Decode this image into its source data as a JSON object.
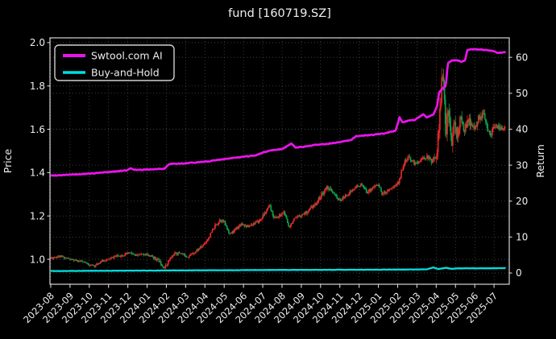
{
  "chart_data": {
    "type": "mixed",
    "subtypes": [
      "candlestick",
      "line"
    ],
    "title": "fund [160719.SZ]",
    "ylabel_left": "Price",
    "ylabel_right": "Return",
    "background": "#000000",
    "grid": true,
    "legend_position": "upper-left",
    "legend": [
      {
        "label": "Swtool.com AI",
        "color": "#ea14ea"
      },
      {
        "label": "Buy-and-Hold",
        "color": "#00dede"
      }
    ],
    "x_axis": {
      "unit": "months since 2023-08",
      "min": -0.04,
      "max": 23.79,
      "data_end": 23.6,
      "tick_months": [
        0,
        1,
        2,
        3,
        4,
        5,
        6,
        7,
        8,
        9,
        10,
        11,
        12,
        13,
        14,
        15,
        16,
        17,
        18,
        19,
        20,
        21,
        22,
        23
      ],
      "tick_labels": [
        "2023-08",
        "2023-09",
        "2023-10",
        "2023-11",
        "2023-12",
        "2024-01",
        "2024-02",
        "2024-03",
        "2024-04",
        "2024-05",
        "2024-06",
        "2024-07",
        "2024-08",
        "2024-09",
        "2024-10",
        "2024-11",
        "2024-12",
        "2025-01",
        "2025-02",
        "2025-03",
        "2025-04",
        "2025-05",
        "2025-06",
        "2025-07"
      ]
    },
    "price_axis": {
      "min": 0.885,
      "max": 2.022,
      "ticks": [
        1.0,
        1.2,
        1.4,
        1.6,
        1.8,
        2.0
      ],
      "tick_labels": [
        "1.0",
        "1.2",
        "1.4",
        "1.6",
        "1.8",
        "2.0"
      ]
    },
    "return_axis": {
      "min": -3.13,
      "max": 65.42,
      "ticks": [
        0,
        10,
        20,
        30,
        40,
        50,
        60
      ],
      "tick_labels": [
        "0",
        "10",
        "20",
        "30",
        "40",
        "50",
        "60"
      ]
    },
    "series": {
      "ai": {
        "name": "Swtool.com AI",
        "axis": "return",
        "color": "#ea14ea",
        "points": [
          [
            0,
            27.1
          ],
          [
            0.8,
            27.3
          ],
          [
            1.6,
            27.5
          ],
          [
            2.4,
            27.8
          ],
          [
            3.2,
            28.2
          ],
          [
            3.9,
            28.5
          ],
          [
            4.15,
            29.1
          ],
          [
            4.45,
            28.6
          ],
          [
            5.0,
            28.8
          ],
          [
            5.9,
            29.0
          ],
          [
            6.15,
            30.3
          ],
          [
            7.0,
            30.5
          ],
          [
            7.6,
            30.8
          ],
          [
            8.2,
            31.1
          ],
          [
            9.0,
            31.7
          ],
          [
            9.8,
            32.2
          ],
          [
            10.6,
            32.7
          ],
          [
            11.05,
            33.6
          ],
          [
            11.5,
            34.2
          ],
          [
            12.0,
            34.5
          ],
          [
            12.5,
            36.0
          ],
          [
            12.7,
            34.9
          ],
          [
            13.1,
            35.1
          ],
          [
            13.7,
            35.6
          ],
          [
            14.3,
            35.9
          ],
          [
            15.0,
            36.4
          ],
          [
            15.6,
            37.0
          ],
          [
            15.85,
            38.1
          ],
          [
            16.6,
            38.4
          ],
          [
            17.3,
            38.8
          ],
          [
            17.9,
            39.6
          ],
          [
            18.1,
            43.4
          ],
          [
            18.25,
            41.9
          ],
          [
            18.5,
            42.3
          ],
          [
            18.9,
            42.6
          ],
          [
            19.2,
            43.7
          ],
          [
            19.35,
            44.2
          ],
          [
            19.5,
            43.3
          ],
          [
            19.85,
            44.1
          ],
          [
            20.05,
            46.5
          ],
          [
            20.15,
            50.3
          ],
          [
            20.35,
            51.4
          ],
          [
            20.5,
            52.0
          ],
          [
            20.6,
            58.4
          ],
          [
            20.8,
            59.1
          ],
          [
            21.1,
            59.2
          ],
          [
            21.3,
            58.8
          ],
          [
            21.5,
            59.2
          ],
          [
            21.62,
            62.1
          ],
          [
            22.0,
            62.3
          ],
          [
            22.4,
            62.1
          ],
          [
            22.9,
            61.8
          ],
          [
            23.2,
            61.2
          ],
          [
            23.6,
            61.4
          ]
        ]
      },
      "buy_hold": {
        "name": "Buy-and-Hold",
        "axis": "return",
        "color": "#00dede",
        "points": [
          [
            0,
            0.55
          ],
          [
            4,
            0.65
          ],
          [
            8,
            0.75
          ],
          [
            12,
            0.85
          ],
          [
            16,
            0.9
          ],
          [
            19.5,
            1.0
          ],
          [
            19.85,
            1.55
          ],
          [
            20.1,
            1.1
          ],
          [
            20.5,
            1.45
          ],
          [
            20.8,
            1.15
          ],
          [
            21.2,
            1.3
          ],
          [
            22.0,
            1.3
          ],
          [
            23.6,
            1.35
          ]
        ]
      },
      "fund": {
        "name": "fund 160719.SZ daily candles",
        "axis": "price",
        "up_color": "#e62828",
        "down_color": "#0aa04d",
        "candles_per_month": 21,
        "anchors_close_vol": [
          [
            0,
            1.005,
            0.012
          ],
          [
            0.4,
            1.015,
            0.012
          ],
          [
            0.8,
            1.005,
            0.01
          ],
          [
            1.2,
            0.995,
            0.01
          ],
          [
            1.6,
            0.99,
            0.01
          ],
          [
            2.0,
            0.975,
            0.01
          ],
          [
            2.3,
            0.97,
            0.01
          ],
          [
            2.6,
            0.99,
            0.011
          ],
          [
            3.0,
            1.0,
            0.011
          ],
          [
            3.4,
            1.015,
            0.012
          ],
          [
            3.8,
            1.02,
            0.013
          ],
          [
            4.1,
            1.03,
            0.014
          ],
          [
            4.4,
            1.015,
            0.013
          ],
          [
            4.8,
            1.025,
            0.014
          ],
          [
            5.2,
            1.015,
            0.014
          ],
          [
            5.6,
            0.995,
            0.015
          ],
          [
            5.9,
            0.96,
            0.017
          ],
          [
            6.1,
            0.99,
            0.016
          ],
          [
            6.4,
            1.025,
            0.015
          ],
          [
            6.7,
            1.03,
            0.013
          ],
          [
            7.1,
            1.012,
            0.013
          ],
          [
            7.5,
            1.035,
            0.014
          ],
          [
            7.9,
            1.065,
            0.015
          ],
          [
            8.2,
            1.1,
            0.016
          ],
          [
            8.5,
            1.15,
            0.018
          ],
          [
            8.8,
            1.185,
            0.018
          ],
          [
            9.0,
            1.17,
            0.016
          ],
          [
            9.3,
            1.115,
            0.016
          ],
          [
            9.6,
            1.14,
            0.015
          ],
          [
            9.9,
            1.165,
            0.015
          ],
          [
            10.2,
            1.15,
            0.014
          ],
          [
            10.5,
            1.165,
            0.015
          ],
          [
            10.8,
            1.175,
            0.016
          ],
          [
            11.1,
            1.21,
            0.018
          ],
          [
            11.35,
            1.245,
            0.018
          ],
          [
            11.6,
            1.19,
            0.016
          ],
          [
            11.9,
            1.2,
            0.016
          ],
          [
            12.1,
            1.22,
            0.016
          ],
          [
            12.35,
            1.15,
            0.016
          ],
          [
            12.6,
            1.18,
            0.016
          ],
          [
            12.9,
            1.2,
            0.016
          ],
          [
            13.3,
            1.22,
            0.017
          ],
          [
            13.7,
            1.25,
            0.018
          ],
          [
            14.0,
            1.29,
            0.019
          ],
          [
            14.35,
            1.335,
            0.02
          ],
          [
            14.7,
            1.3,
            0.018
          ],
          [
            15.0,
            1.27,
            0.016
          ],
          [
            15.4,
            1.3,
            0.016
          ],
          [
            15.8,
            1.33,
            0.016
          ],
          [
            16.1,
            1.345,
            0.016
          ],
          [
            16.4,
            1.31,
            0.016
          ],
          [
            16.7,
            1.33,
            0.016
          ],
          [
            17.0,
            1.345,
            0.016
          ],
          [
            17.2,
            1.3,
            0.016
          ],
          [
            17.5,
            1.32,
            0.016
          ],
          [
            17.8,
            1.335,
            0.016
          ],
          [
            18.05,
            1.355,
            0.018
          ],
          [
            18.3,
            1.44,
            0.024
          ],
          [
            18.6,
            1.47,
            0.02
          ],
          [
            18.9,
            1.44,
            0.018
          ],
          [
            19.2,
            1.46,
            0.018
          ],
          [
            19.5,
            1.475,
            0.018
          ],
          [
            19.8,
            1.45,
            0.022
          ],
          [
            20.05,
            1.5,
            0.05
          ],
          [
            20.2,
            1.7,
            0.1
          ],
          [
            20.35,
            1.86,
            0.12
          ],
          [
            20.5,
            1.58,
            0.1
          ],
          [
            20.65,
            1.72,
            0.09
          ],
          [
            20.8,
            1.55,
            0.07
          ],
          [
            20.95,
            1.62,
            0.055
          ],
          [
            21.1,
            1.57,
            0.05
          ],
          [
            21.25,
            1.65,
            0.05
          ],
          [
            21.45,
            1.6,
            0.04
          ],
          [
            21.7,
            1.64,
            0.038
          ],
          [
            21.95,
            1.6,
            0.035
          ],
          [
            22.2,
            1.65,
            0.035
          ],
          [
            22.45,
            1.67,
            0.034
          ],
          [
            22.65,
            1.6,
            0.03
          ],
          [
            22.85,
            1.58,
            0.027
          ],
          [
            23.05,
            1.62,
            0.026
          ],
          [
            23.3,
            1.6,
            0.025
          ],
          [
            23.6,
            1.61,
            0.024
          ]
        ]
      }
    }
  }
}
